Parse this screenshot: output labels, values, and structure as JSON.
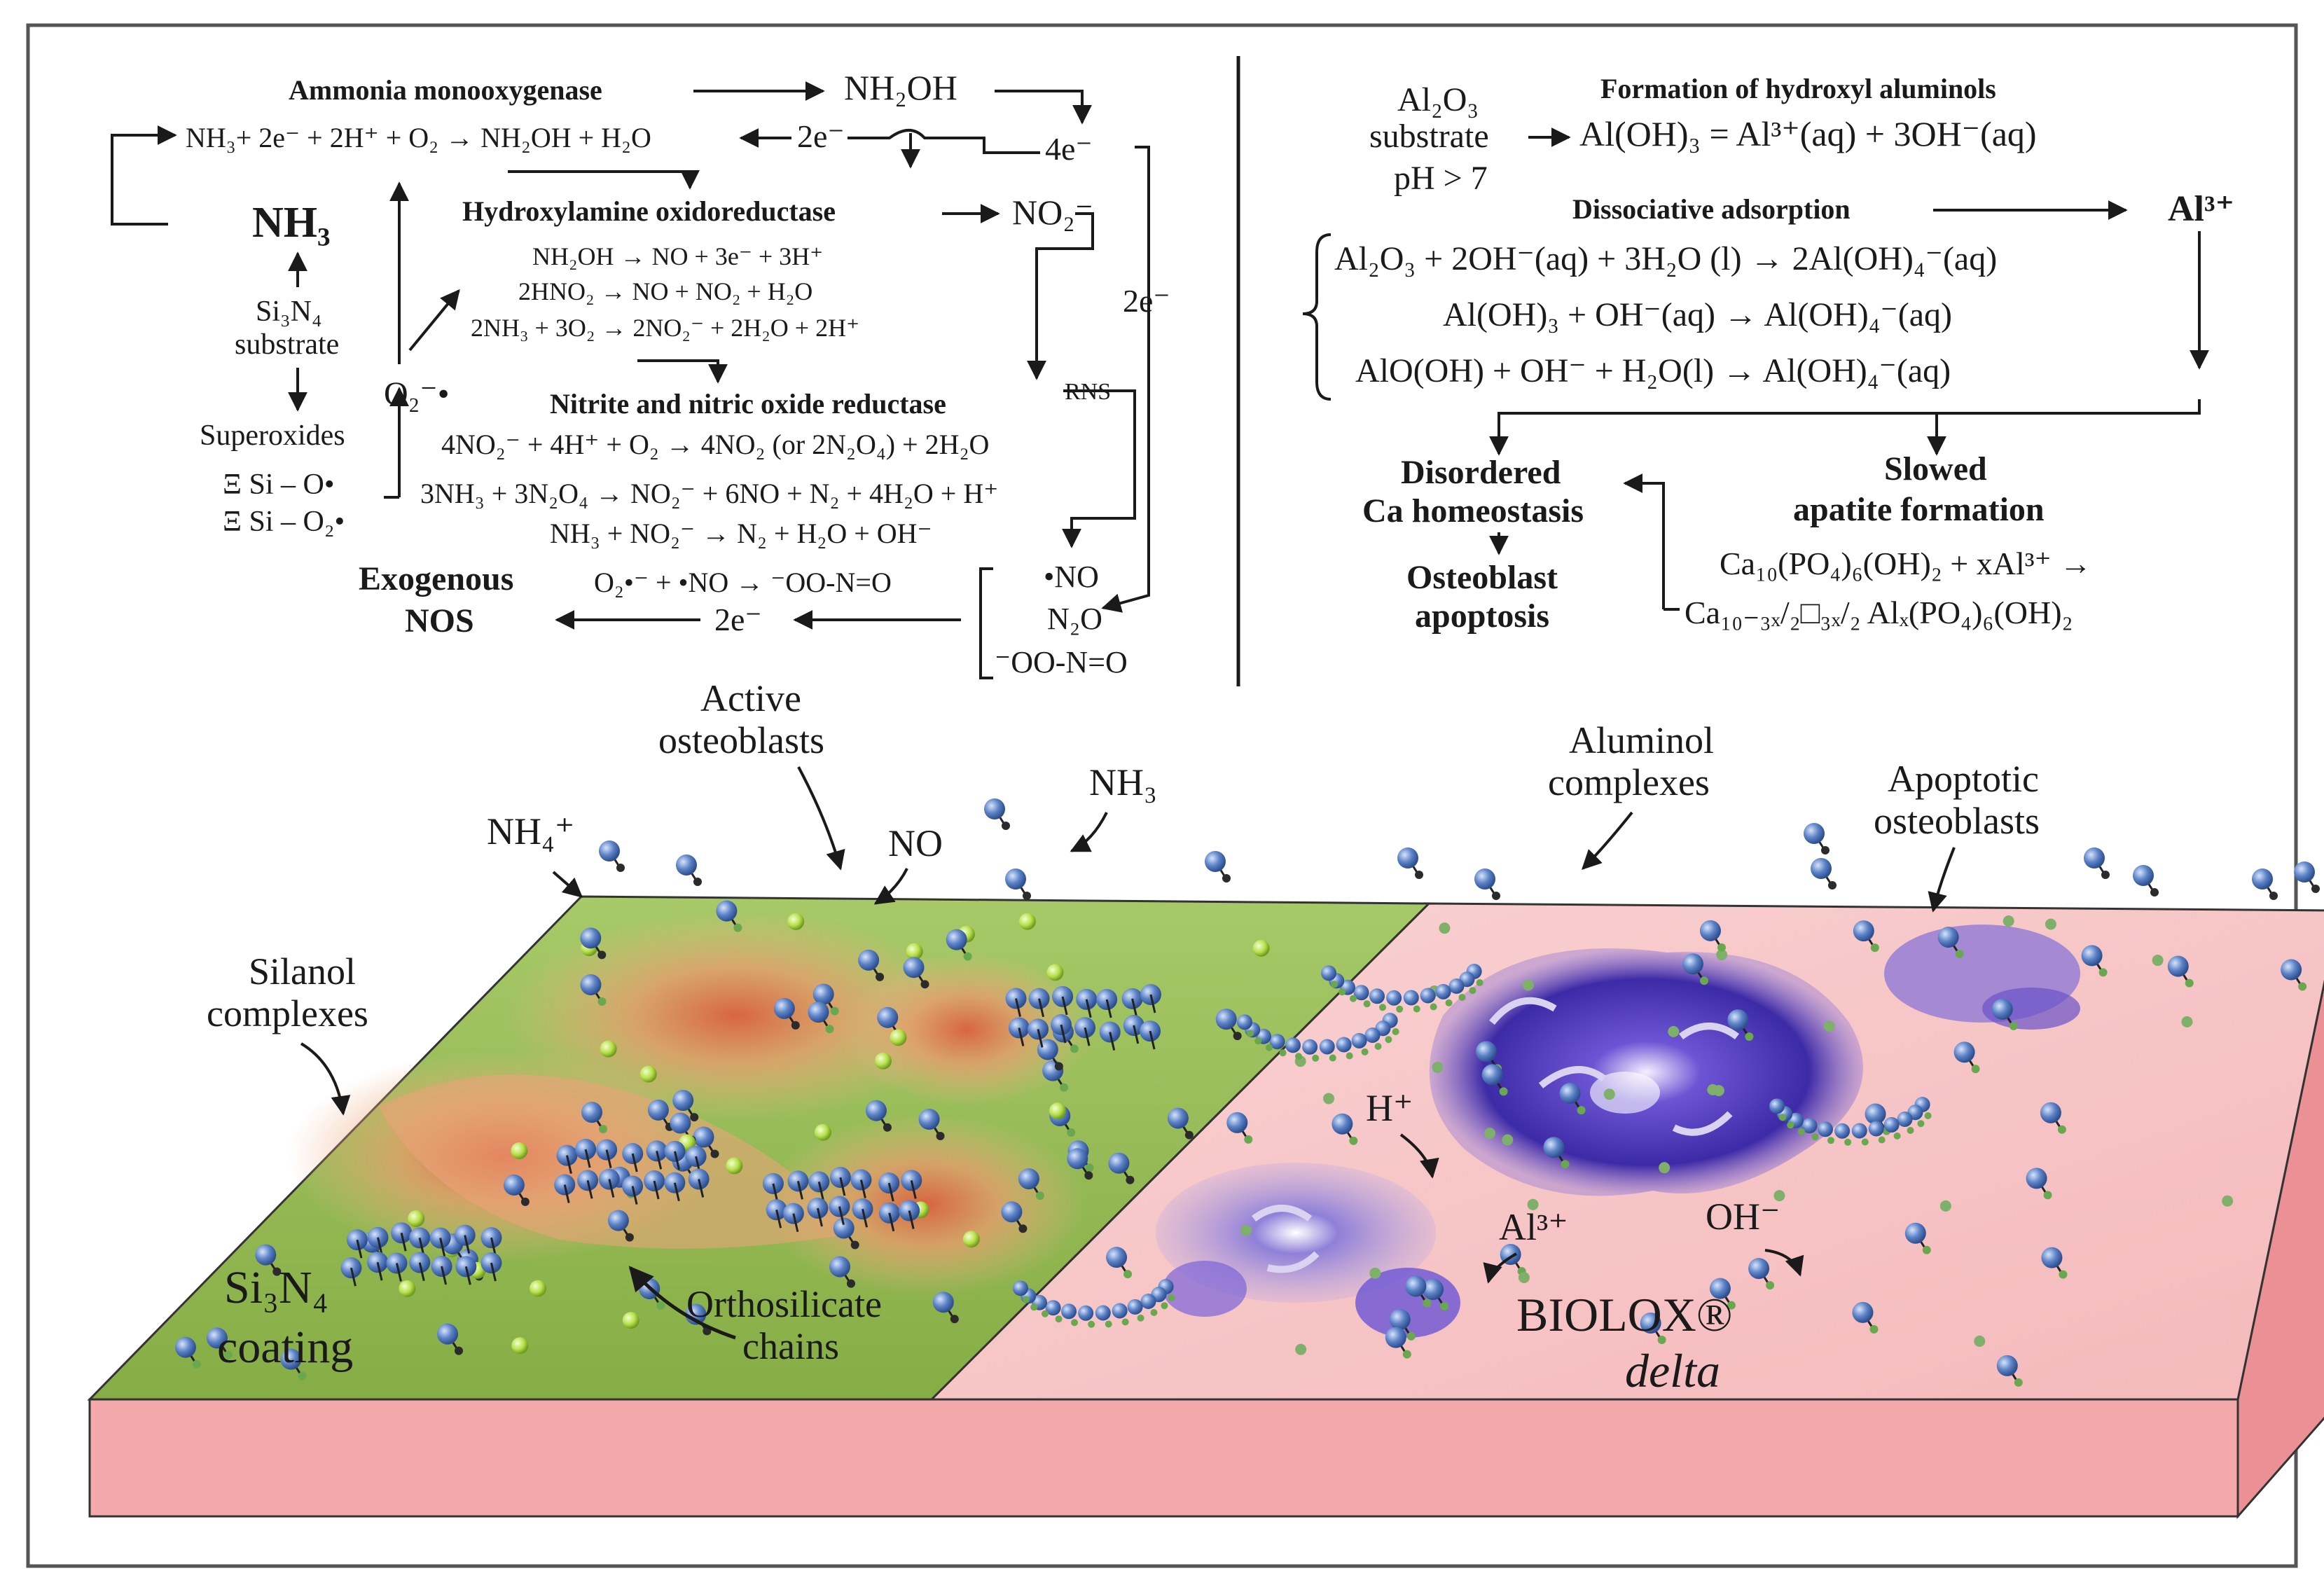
{
  "colors": {
    "green_surface": "#9dbe5c",
    "green_edge": "#6f9a33",
    "pink_surface": "#f6c2c2",
    "pink_side": "#f3a8ab",
    "osteoblast": "#e79a68",
    "apoptotic": "#5b3fb8",
    "molecule": "#5c82c6",
    "silanol_dot": "#8bc34a",
    "frame": "#555555"
  },
  "left_panel": {
    "enzyme_amo": "Ammonia monooxygenase",
    "nh2oh": "NH₂OH",
    "eq_amo": "NH₃+ 2e⁻ + 2H⁺ + O₂ → NH₂OH + H₂O",
    "e2_top": "2e⁻",
    "e4": "4e⁻",
    "nh3_big": "NH₃",
    "enzyme_hao": "Hydroxylamine oxidoreductase",
    "no2": "NO₂⁻",
    "eq_hao_1": "NH₂OH → NO + 3e⁻ + 3H⁺",
    "eq_hao_2": "2HNO₂ → NO + NO₂ + H₂O",
    "eq_hao_3": "2NH₃ + 3O₂ → 2NO₂⁻ + 2H₂O + 2H⁺",
    "e2_side": "2e⁻",
    "substrate_line1": "Si₃N₄",
    "substrate_line2": "substrate",
    "o2_radical": "O₂⁻•",
    "rns": "RNS",
    "enzyme_nir": "Nitrite and nitric oxide reductase",
    "superoxides": "Superoxides",
    "eq_nir_1": "4NO₂⁻ + 4H⁺ + O₂ → 4NO₂ (or 2N₂O₄) + 2H₂O",
    "si_o": "Ξ Si – O•",
    "si_o2": "Ξ Si – O₂•",
    "eq_nir_2": "3NH₃ + 3N₂O₄ → NO₂⁻ + 6NO + N₂ + 4H₂O + H⁺",
    "eq_nir_3": "NH₃ + NO₂⁻ → N₂ + H₂O + OH⁻",
    "exo_line1": "Exogenous",
    "exo_line2": "NOS",
    "eq_peroxy": "O₂•⁻ + •NO → ⁻OO-N=O",
    "e2_bottom": "2e⁻",
    "out_no": "•NO",
    "out_n2o": "N₂O",
    "out_oono": "⁻OO-N=O"
  },
  "right_panel": {
    "al2o3": "Al₂O₃",
    "substrate": "substrate",
    "ph": "pH > 7",
    "formation_title": "Formation of hydroxyl aluminols",
    "eq_form": "Al(OH)₃ = Al³⁺(aq) + 3OH⁻(aq)",
    "dissoc_title": "Dissociative adsorption",
    "al3_big": "Al³⁺",
    "eq_d1": "Al₂O₃ + 2OH⁻(aq)  +  3H₂O  (l) → 2Al(OH)₄⁻(aq)",
    "eq_d2": "Al(OH)₃ + OH⁻(aq) → Al(OH)₄⁻(aq)",
    "eq_d3": "AlO(OH) + OH⁻ + H₂O(l) → Al(OH)₄⁻(aq)",
    "disordered_1": "Disordered",
    "disordered_2": "Ca homeostasis",
    "slowed_1": "Slowed",
    "slowed_2": "apatite formation",
    "osteo_1": "Osteoblast",
    "osteo_2": "apoptosis",
    "eq_ap1": "Ca₁₀(PO₄)₆(OH)₂ + xAl³⁺ →",
    "eq_ap2": "Ca₁₀₋₃ₓ/₂□₃ₓ/₂ Alₓ(PO₄)₆(OH)₂"
  },
  "scene": {
    "active_1": "Active",
    "active_2": "osteoblasts",
    "nh4": "NH₄⁺",
    "no": "NO",
    "nh3": "NH₃",
    "aluminol_1": "Aluminol",
    "aluminol_2": "complexes",
    "apoptotic_1": "Apoptotic",
    "apoptotic_2": "osteoblasts",
    "silanol_1": "Silanol",
    "silanol_2": "complexes",
    "h_plus": "H⁺",
    "al3": "Al³⁺",
    "oh_minus": "OH⁻",
    "si3n4_1": "Si₃N₄",
    "si3n4_2": "coating",
    "ortho_1": "Orthosilicate",
    "ortho_2": "chains",
    "biolox": "BIOLOX®",
    "delta": "delta"
  }
}
